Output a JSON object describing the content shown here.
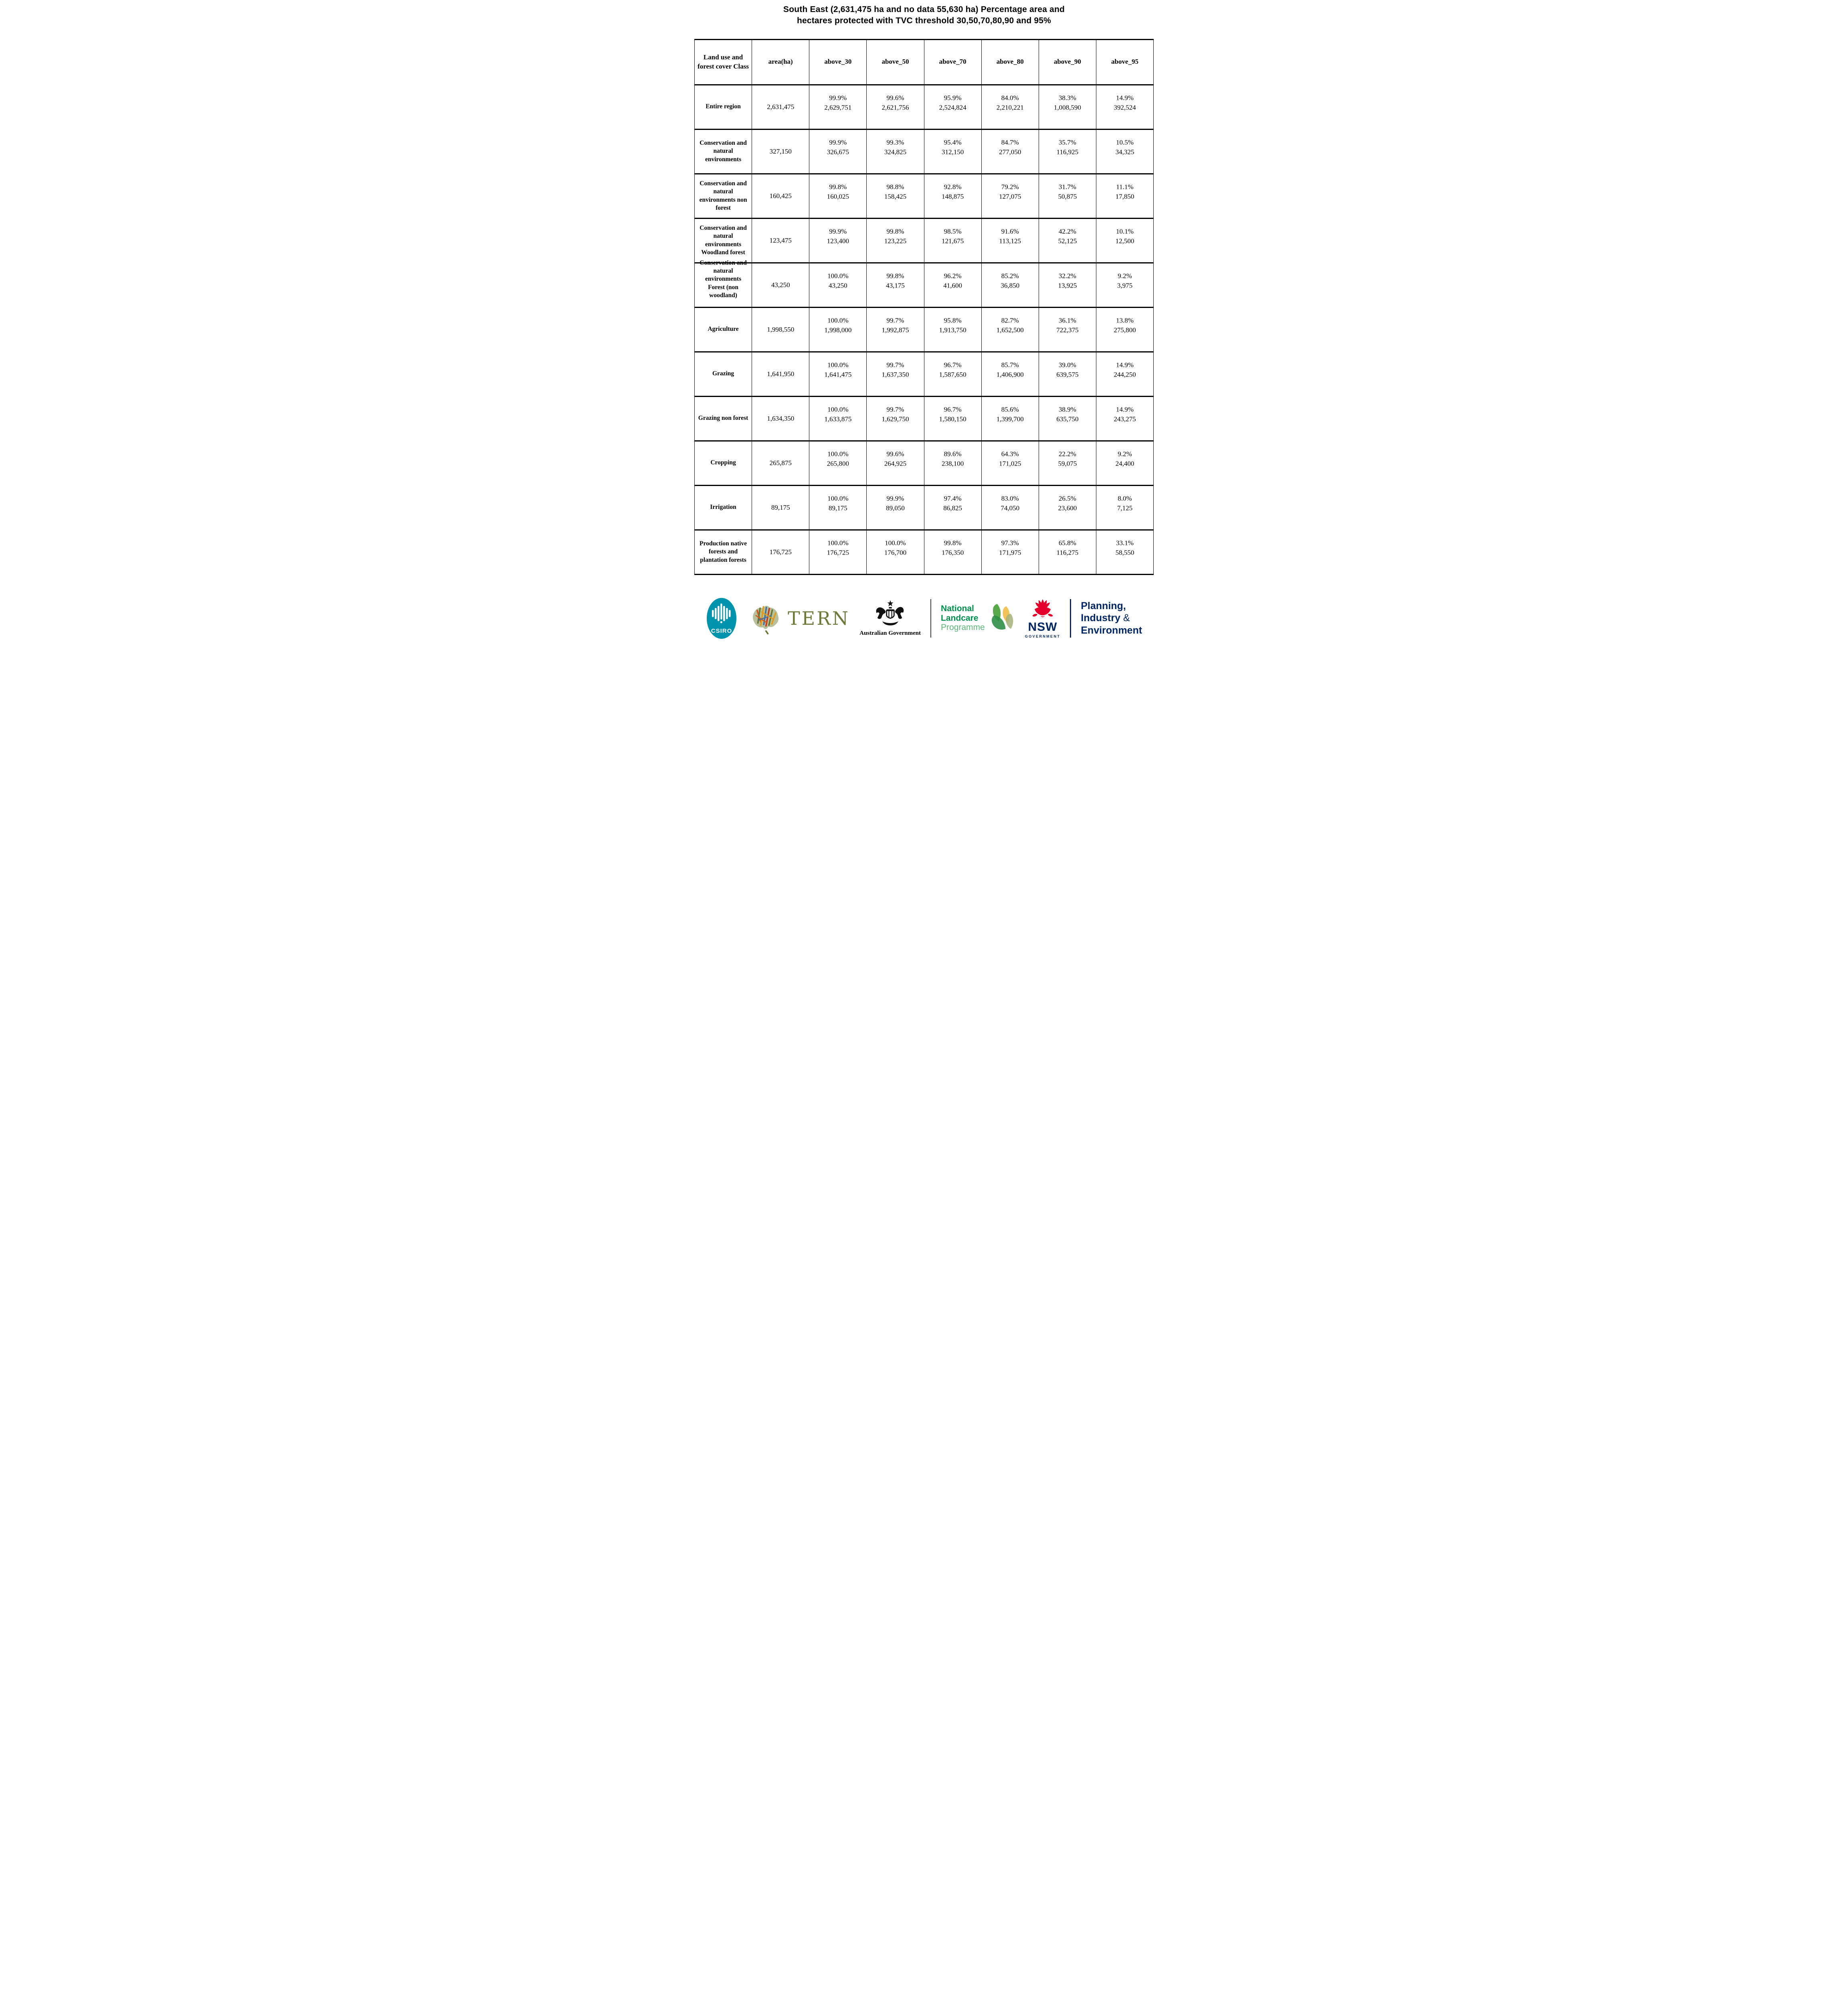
{
  "title": {
    "line1": "South East (2,631,475 ha and no data 55,630 ha) Percentage area and",
    "line2": "hectares protected with TVC threshold 30,50,70,80,90 and 95%"
  },
  "table": {
    "columns": [
      "Land use and forest cover Class",
      "area(ha)",
      "above_30",
      "above_50",
      "above_70",
      "above_80",
      "above_90",
      "above_95"
    ],
    "rows": [
      {
        "label": "Entire region",
        "area": "2,631,475",
        "cells": [
          {
            "pct": "99.9%",
            "ha": "2,629,751"
          },
          {
            "pct": "99.6%",
            "ha": "2,621,756"
          },
          {
            "pct": "95.9%",
            "ha": "2,524,824"
          },
          {
            "pct": "84.0%",
            "ha": "2,210,221"
          },
          {
            "pct": "38.3%",
            "ha": "1,008,590"
          },
          {
            "pct": "14.9%",
            "ha": "392,524"
          }
        ]
      },
      {
        "label": "Conservation and natural environments",
        "area": "327,150",
        "cells": [
          {
            "pct": "99.9%",
            "ha": "326,675"
          },
          {
            "pct": "99.3%",
            "ha": "324,825"
          },
          {
            "pct": "95.4%",
            "ha": "312,150"
          },
          {
            "pct": "84.7%",
            "ha": "277,050"
          },
          {
            "pct": "35.7%",
            "ha": "116,925"
          },
          {
            "pct": "10.5%",
            "ha": "34,325"
          }
        ]
      },
      {
        "label": "Conservation and natural environments non forest",
        "area": "160,425",
        "cells": [
          {
            "pct": "99.8%",
            "ha": "160,025"
          },
          {
            "pct": "98.8%",
            "ha": "158,425"
          },
          {
            "pct": "92.8%",
            "ha": "148,875"
          },
          {
            "pct": "79.2%",
            "ha": "127,075"
          },
          {
            "pct": "31.7%",
            "ha": "50,875"
          },
          {
            "pct": "11.1%",
            "ha": "17,850"
          }
        ]
      },
      {
        "label": "Conservation and natural environments Woodland forest",
        "area": "123,475",
        "cells": [
          {
            "pct": "99.9%",
            "ha": "123,400"
          },
          {
            "pct": "99.8%",
            "ha": "123,225"
          },
          {
            "pct": "98.5%",
            "ha": "121,675"
          },
          {
            "pct": "91.6%",
            "ha": "113,125"
          },
          {
            "pct": "42.2%",
            "ha": "52,125"
          },
          {
            "pct": "10.1%",
            "ha": "12,500"
          }
        ]
      },
      {
        "label": "Conservation and natural environments Forest (non woodland)",
        "area": "43,250",
        "cells": [
          {
            "pct": "100.0%",
            "ha": "43,250"
          },
          {
            "pct": "99.8%",
            "ha": "43,175"
          },
          {
            "pct": "96.2%",
            "ha": "41,600"
          },
          {
            "pct": "85.2%",
            "ha": "36,850"
          },
          {
            "pct": "32.2%",
            "ha": "13,925"
          },
          {
            "pct": "9.2%",
            "ha": "3,975"
          }
        ]
      },
      {
        "label": "Agriculture",
        "area": "1,998,550",
        "cells": [
          {
            "pct": "100.0%",
            "ha": "1,998,000"
          },
          {
            "pct": "99.7%",
            "ha": "1,992,875"
          },
          {
            "pct": "95.8%",
            "ha": "1,913,750"
          },
          {
            "pct": "82.7%",
            "ha": "1,652,500"
          },
          {
            "pct": "36.1%",
            "ha": "722,375"
          },
          {
            "pct": "13.8%",
            "ha": "275,800"
          }
        ]
      },
      {
        "label": "Grazing",
        "area": "1,641,950",
        "cells": [
          {
            "pct": "100.0%",
            "ha": "1,641,475"
          },
          {
            "pct": "99.7%",
            "ha": "1,637,350"
          },
          {
            "pct": "96.7%",
            "ha": "1,587,650"
          },
          {
            "pct": "85.7%",
            "ha": "1,406,900"
          },
          {
            "pct": "39.0%",
            "ha": "639,575"
          },
          {
            "pct": "14.9%",
            "ha": "244,250"
          }
        ]
      },
      {
        "label": "Grazing non forest",
        "area": "1,634,350",
        "cells": [
          {
            "pct": "100.0%",
            "ha": "1,633,875"
          },
          {
            "pct": "99.7%",
            "ha": "1,629,750"
          },
          {
            "pct": "96.7%",
            "ha": "1,580,150"
          },
          {
            "pct": "85.6%",
            "ha": "1,399,700"
          },
          {
            "pct": "38.9%",
            "ha": "635,750"
          },
          {
            "pct": "14.9%",
            "ha": "243,275"
          }
        ]
      },
      {
        "label": "Cropping",
        "area": "265,875",
        "cells": [
          {
            "pct": "100.0%",
            "ha": "265,800"
          },
          {
            "pct": "99.6%",
            "ha": "264,925"
          },
          {
            "pct": "89.6%",
            "ha": "238,100"
          },
          {
            "pct": "64.3%",
            "ha": "171,025"
          },
          {
            "pct": "22.2%",
            "ha": "59,075"
          },
          {
            "pct": "9.2%",
            "ha": "24,400"
          }
        ]
      },
      {
        "label": "Irrigation",
        "area": "89,175",
        "cells": [
          {
            "pct": "100.0%",
            "ha": "89,175"
          },
          {
            "pct": "99.9%",
            "ha": "89,050"
          },
          {
            "pct": "97.4%",
            "ha": "86,825"
          },
          {
            "pct": "83.0%",
            "ha": "74,050"
          },
          {
            "pct": "26.5%",
            "ha": "23,600"
          },
          {
            "pct": "8.0%",
            "ha": "7,125"
          }
        ]
      },
      {
        "label": "Production native forests and plantation forests",
        "area": "176,725",
        "cells": [
          {
            "pct": "100.0%",
            "ha": "176,725"
          },
          {
            "pct": "100.0%",
            "ha": "176,700"
          },
          {
            "pct": "99.8%",
            "ha": "176,350"
          },
          {
            "pct": "97.3%",
            "ha": "171,975"
          },
          {
            "pct": "65.8%",
            "ha": "116,275"
          },
          {
            "pct": "33.1%",
            "ha": "58,550"
          }
        ]
      }
    ]
  },
  "footer": {
    "csiro": {
      "label": "CSIRO"
    },
    "tern": {
      "label": "TERN"
    },
    "aus_gov": {
      "label": "Australian Government"
    },
    "landcare": {
      "line1": "National",
      "line2": "Landcare",
      "line3": "Programme"
    },
    "nsw": {
      "name": "NSW",
      "sub": "GOVERNMENT"
    },
    "planning": {
      "line1": "Planning,",
      "line2": "Industry",
      "amp": "&",
      "line3": "Environment"
    }
  },
  "colors": {
    "csiro_teal": "#0093ad",
    "tern_olive": "#6b7a3a",
    "landcare_green": "#00914c",
    "landcare_light": "#5cb878",
    "nsw_red": "#e4002b",
    "navy": "#002664"
  }
}
